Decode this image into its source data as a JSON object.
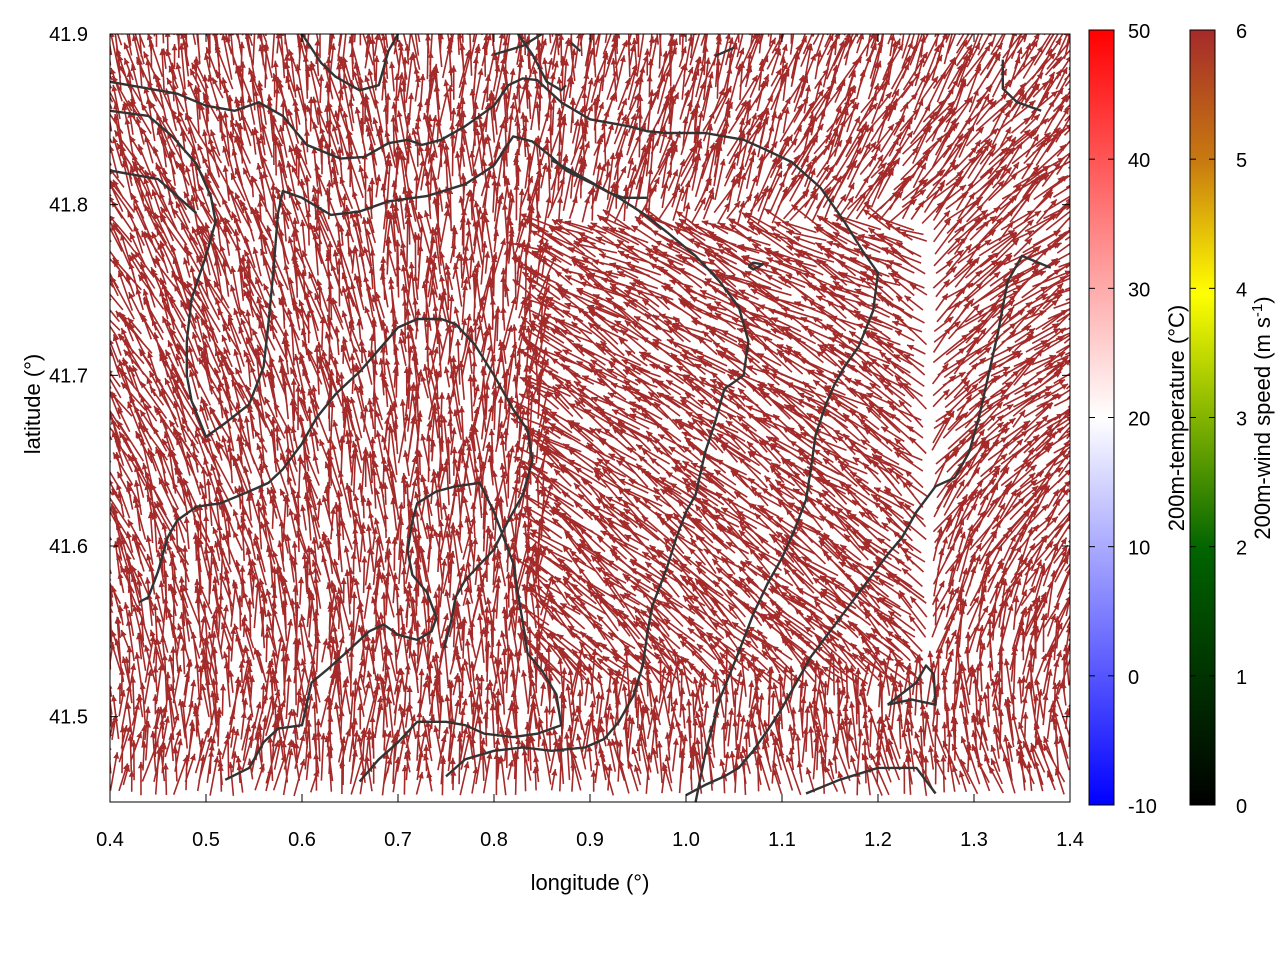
{
  "chart_data": {
    "type": "vector-field",
    "xlabel": "longitude (°)",
    "ylabel": "latitude (°)",
    "xlim": [
      0.4,
      1.4
    ],
    "ylim": [
      41.45,
      41.9
    ],
    "x_ticks": [
      "0.4",
      "0.5",
      "0.6",
      "0.7",
      "0.8",
      "0.9",
      "1.0",
      "1.1",
      "1.2",
      "1.3",
      "1.4"
    ],
    "y_ticks": [
      "41.5",
      "41.6",
      "41.7",
      "41.8",
      "41.9"
    ],
    "arrow_color": "#a52a2a",
    "contour_color": "#333333",
    "colorbars": [
      {
        "name": "temperature",
        "label": "200m-temperature (°C)",
        "range": [
          -10,
          50
        ],
        "ticks": [
          "-10",
          "0",
          "10",
          "20",
          "30",
          "40",
          "50"
        ],
        "colors": [
          "#0000ff",
          "#ffffff",
          "#ff0000"
        ]
      },
      {
        "name": "wind",
        "label_main": "200m-wind speed (m s",
        "label_sup": "-1",
        "label_end": ")",
        "range": [
          0,
          6
        ],
        "ticks": [
          "0",
          "1",
          "2",
          "3",
          "4",
          "5",
          "6"
        ],
        "colors": [
          "#000000",
          "#006400",
          "#ffff00",
          "#a52a2a"
        ]
      }
    ],
    "contours": [
      [
        [
          0.4,
          41.872
        ],
        [
          0.44,
          41.868
        ],
        [
          0.47,
          41.865
        ],
        [
          0.5,
          41.858
        ],
        [
          0.53,
          41.855
        ],
        [
          0.555,
          41.86
        ],
        [
          0.58,
          41.852
        ],
        [
          0.605,
          41.835
        ],
        [
          0.64,
          41.827
        ],
        [
          0.665,
          41.828
        ],
        [
          0.69,
          41.836
        ],
        [
          0.71,
          41.838
        ],
        [
          0.725,
          41.835
        ],
        [
          0.745,
          41.838
        ],
        [
          0.77,
          41.846
        ],
        [
          0.8,
          41.858
        ],
        [
          0.815,
          41.87
        ],
        [
          0.83,
          41.874
        ],
        [
          0.845,
          41.873
        ],
        [
          0.87,
          41.86
        ],
        [
          0.9,
          41.85
        ],
        [
          0.94,
          41.846
        ],
        [
          0.96,
          41.843
        ],
        [
          0.98,
          41.842
        ],
        [
          1.02,
          41.842
        ],
        [
          1.06,
          41.838
        ],
        [
          1.08,
          41.833
        ],
        [
          1.11,
          41.825
        ],
        [
          1.14,
          41.81
        ],
        [
          1.165,
          41.79
        ],
        [
          1.185,
          41.772
        ],
        [
          1.2,
          41.76
        ],
        [
          1.195,
          41.738
        ],
        [
          1.18,
          41.717
        ],
        [
          1.165,
          41.705
        ],
        [
          1.155,
          41.695
        ],
        [
          1.145,
          41.682
        ],
        [
          1.135,
          41.665
        ],
        [
          1.13,
          41.645
        ],
        [
          1.125,
          41.627
        ],
        [
          1.112,
          41.608
        ],
        [
          1.1,
          41.593
        ],
        [
          1.085,
          41.578
        ],
        [
          1.07,
          41.56
        ],
        [
          1.055,
          41.538
        ],
        [
          1.035,
          41.51
        ],
        [
          1.02,
          41.478
        ],
        [
          1.01,
          41.45
        ]
      ],
      [
        [
          0.4,
          41.855
        ],
        [
          0.44,
          41.852
        ],
        [
          0.465,
          41.84
        ],
        [
          0.49,
          41.824
        ],
        [
          0.505,
          41.805
        ],
        [
          0.51,
          41.79
        ],
        [
          0.5,
          41.77
        ],
        [
          0.485,
          41.745
        ],
        [
          0.48,
          41.72
        ],
        [
          0.48,
          41.7
        ],
        [
          0.485,
          41.685
        ],
        [
          0.5,
          41.664
        ],
        [
          0.52,
          41.672
        ],
        [
          0.545,
          41.683
        ],
        [
          0.56,
          41.705
        ],
        [
          0.565,
          41.73
        ],
        [
          0.57,
          41.76
        ],
        [
          0.575,
          41.795
        ],
        [
          0.58,
          41.808
        ],
        [
          0.6,
          41.804
        ],
        [
          0.63,
          41.794
        ],
        [
          0.66,
          41.796
        ],
        [
          0.69,
          41.802
        ],
        [
          0.73,
          41.805
        ],
        [
          0.77,
          41.812
        ],
        [
          0.8,
          41.823
        ],
        [
          0.82,
          41.84
        ],
        [
          0.84,
          41.837
        ],
        [
          0.86,
          41.828
        ],
        [
          0.875,
          41.82
        ],
        [
          0.9,
          41.813
        ],
        [
          0.92,
          41.807
        ],
        [
          0.935,
          41.804
        ],
        [
          0.96,
          41.804
        ]
      ],
      [
        [
          0.4,
          41.82
        ],
        [
          0.45,
          41.815
        ],
        [
          0.47,
          41.805
        ],
        [
          0.49,
          41.795
        ]
      ],
      [
        [
          0.43,
          41.567
        ],
        [
          0.44,
          41.57
        ],
        [
          0.45,
          41.585
        ],
        [
          0.46,
          41.605
        ],
        [
          0.47,
          41.615
        ],
        [
          0.49,
          41.623
        ],
        [
          0.515,
          41.625
        ],
        [
          0.545,
          41.632
        ],
        [
          0.565,
          41.637
        ],
        [
          0.58,
          41.645
        ],
        [
          0.6,
          41.66
        ],
        [
          0.615,
          41.675
        ],
        [
          0.635,
          41.689
        ],
        [
          0.65,
          41.697
        ],
        [
          0.66,
          41.702
        ],
        [
          0.68,
          41.715
        ],
        [
          0.7,
          41.728
        ],
        [
          0.72,
          41.733
        ],
        [
          0.745,
          41.733
        ],
        [
          0.76,
          41.73
        ],
        [
          0.78,
          41.718
        ],
        [
          0.8,
          41.7
        ],
        [
          0.82,
          41.68
        ],
        [
          0.835,
          41.668
        ],
        [
          0.84,
          41.65
        ],
        [
          0.83,
          41.63
        ],
        [
          0.815,
          41.615
        ],
        [
          0.8,
          41.598
        ],
        [
          0.77,
          41.58
        ],
        [
          0.76,
          41.57
        ],
        [
          0.755,
          41.555
        ],
        [
          0.748,
          41.54
        ]
      ],
      [
        [
          0.52,
          41.463
        ],
        [
          0.545,
          41.47
        ],
        [
          0.56,
          41.485
        ],
        [
          0.575,
          41.493
        ],
        [
          0.6,
          41.495
        ],
        [
          0.61,
          41.52
        ],
        [
          0.625,
          41.527
        ],
        [
          0.645,
          41.537
        ],
        [
          0.67,
          41.55
        ],
        [
          0.685,
          41.554
        ],
        [
          0.7,
          41.548
        ],
        [
          0.72,
          41.545
        ],
        [
          0.735,
          41.55
        ],
        [
          0.74,
          41.558
        ],
        [
          0.73,
          41.573
        ],
        [
          0.715,
          41.583
        ],
        [
          0.71,
          41.597
        ],
        [
          0.715,
          41.615
        ],
        [
          0.72,
          41.625
        ],
        [
          0.74,
          41.632
        ],
        [
          0.76,
          41.635
        ],
        [
          0.785,
          41.637
        ],
        [
          0.8,
          41.62
        ],
        [
          0.81,
          41.605
        ],
        [
          0.82,
          41.59
        ],
        [
          0.825,
          41.572
        ],
        [
          0.83,
          41.555
        ],
        [
          0.835,
          41.537
        ],
        [
          0.85,
          41.527
        ],
        [
          0.865,
          41.513
        ],
        [
          0.87,
          41.495
        ],
        [
          0.845,
          41.49
        ],
        [
          0.82,
          41.488
        ],
        [
          0.79,
          41.49
        ],
        [
          0.77,
          41.495
        ],
        [
          0.75,
          41.497
        ],
        [
          0.72,
          41.497
        ],
        [
          0.7,
          41.485
        ],
        [
          0.68,
          41.475
        ],
        [
          0.66,
          41.462
        ]
      ],
      [
        [
          0.75,
          41.465
        ],
        [
          0.77,
          41.475
        ],
        [
          0.8,
          41.48
        ],
        [
          0.83,
          41.482
        ],
        [
          0.86,
          41.48
        ],
        [
          0.895,
          41.482
        ],
        [
          0.915,
          41.487
        ],
        [
          0.93,
          41.497
        ],
        [
          0.945,
          41.512
        ],
        [
          0.955,
          41.53
        ],
        [
          0.96,
          41.55
        ],
        [
          0.965,
          41.565
        ],
        [
          0.98,
          41.587
        ],
        [
          0.99,
          41.605
        ],
        [
          1.0,
          41.62
        ],
        [
          1.01,
          41.63
        ],
        [
          1.02,
          41.655
        ],
        [
          1.03,
          41.672
        ],
        [
          1.04,
          41.692
        ],
        [
          1.06,
          41.7
        ],
        [
          1.065,
          41.72
        ],
        [
          1.055,
          41.74
        ],
        [
          1.035,
          41.755
        ],
        [
          1.01,
          41.77
        ],
        [
          0.98,
          41.784
        ],
        [
          0.955,
          41.795
        ],
        [
          0.93,
          41.804
        ],
        [
          0.905,
          41.812
        ],
        [
          0.88,
          41.82
        ],
        [
          0.86,
          41.826
        ]
      ],
      [
        [
          1.065,
          41.764
        ],
        [
          1.07,
          41.766
        ],
        [
          1.08,
          41.765
        ],
        [
          1.07,
          41.762
        ],
        [
          1.065,
          41.764
        ]
      ],
      [
        [
          1.0,
          41.454
        ],
        [
          1.02,
          41.46
        ],
        [
          1.04,
          41.465
        ],
        [
          1.055,
          41.47
        ],
        [
          1.07,
          41.48
        ],
        [
          1.085,
          41.492
        ],
        [
          1.1,
          41.505
        ],
        [
          1.115,
          41.52
        ],
        [
          1.13,
          41.535
        ],
        [
          1.15,
          41.55
        ],
        [
          1.17,
          41.565
        ],
        [
          1.19,
          41.58
        ],
        [
          1.21,
          41.595
        ],
        [
          1.225,
          41.605
        ],
        [
          1.24,
          41.62
        ],
        [
          1.26,
          41.635
        ],
        [
          1.28,
          41.64
        ],
        [
          1.295,
          41.655
        ],
        [
          1.305,
          41.675
        ],
        [
          1.315,
          41.7
        ],
        [
          1.325,
          41.725
        ],
        [
          1.335,
          41.755
        ],
        [
          1.35,
          41.77
        ],
        [
          1.38,
          41.763
        ]
      ],
      [
        [
          1.125,
          41.455
        ],
        [
          1.16,
          41.463
        ],
        [
          1.2,
          41.47
        ],
        [
          1.24,
          41.47
        ],
        [
          1.26,
          41.455
        ]
      ],
      [
        [
          1.21,
          41.507
        ],
        [
          1.235,
          41.51
        ],
        [
          1.26,
          41.507
        ],
        [
          1.258,
          41.525
        ],
        [
          1.25,
          41.53
        ],
        [
          1.24,
          41.52
        ],
        [
          1.21,
          41.507
        ]
      ],
      [
        [
          0.825,
          41.9
        ],
        [
          0.84,
          41.888
        ],
        [
          0.855,
          41.872
        ],
        [
          0.87,
          41.867
        ],
        [
          0.875,
          41.87
        ]
      ],
      [
        [
          1.33,
          41.885
        ],
        [
          1.33,
          41.868
        ],
        [
          1.345,
          41.86
        ],
        [
          1.37,
          41.855
        ]
      ],
      [
        [
          0.6,
          41.9
        ],
        [
          0.62,
          41.883
        ],
        [
          0.635,
          41.875
        ],
        [
          0.66,
          41.867
        ],
        [
          0.68,
          41.87
        ],
        [
          0.69,
          41.89
        ],
        [
          0.7,
          41.9
        ]
      ],
      [
        [
          0.8,
          41.888
        ],
        [
          0.83,
          41.893
        ],
        [
          0.85,
          41.9
        ]
      ],
      [
        [
          0.88,
          41.895
        ],
        [
          0.89,
          41.89
        ]
      ],
      [
        [
          1.03,
          41.887
        ],
        [
          1.05,
          41.892
        ]
      ]
    ]
  }
}
